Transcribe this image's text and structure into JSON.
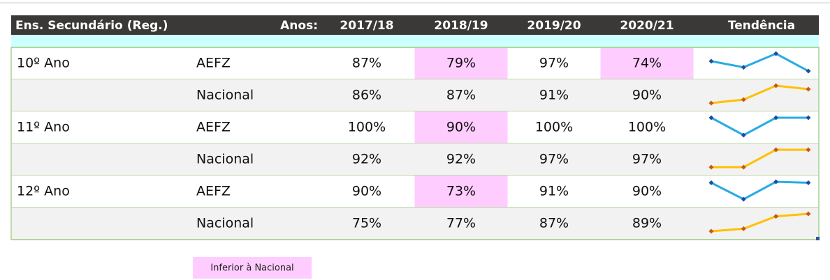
{
  "header": {
    "title": "Ens. Secundário (Reg.)",
    "years_label": "Anos:",
    "years": [
      "2017/18",
      "2018/19",
      "2019/20",
      "2020/21"
    ],
    "trend": "Tendência"
  },
  "table": {
    "rows": [
      {
        "grade": "10º Ano",
        "school": "AEFZ",
        "values": [
          87,
          79,
          97,
          74
        ],
        "value_labels": [
          "87%",
          "79%",
          "97%",
          "74%"
        ],
        "line_color": "#29abe2",
        "marker_color": "#1f4e9c"
      },
      {
        "school": "Nacional",
        "values": [
          86,
          87,
          91,
          90
        ],
        "value_labels": [
          "86%",
          "87%",
          "91%",
          "90%"
        ],
        "line_color": "#ffc000",
        "marker_color": "#c55a11"
      },
      {
        "grade": "11º Ano",
        "school": "AEFZ",
        "values": [
          100,
          90,
          100,
          100
        ],
        "value_labels": [
          "100%",
          "90%",
          "100%",
          "100%"
        ],
        "line_color": "#29abe2",
        "marker_color": "#1f4e9c"
      },
      {
        "school": "Nacional",
        "values": [
          92,
          92,
          97,
          97
        ],
        "value_labels": [
          "92%",
          "92%",
          "97%",
          "97%"
        ],
        "line_color": "#ffc000",
        "marker_color": "#c55a11"
      },
      {
        "grade": "12º Ano",
        "school": "AEFZ",
        "values": [
          90,
          73,
          91,
          90
        ],
        "value_labels": [
          "90%",
          "73%",
          "91%",
          "90%"
        ],
        "line_color": "#29abe2",
        "marker_color": "#1f4e9c"
      },
      {
        "school": "Nacional",
        "values": [
          75,
          77,
          87,
          89
        ],
        "value_labels": [
          "75%",
          "77%",
          "87%",
          "89%"
        ],
        "line_color": "#ffc000",
        "marker_color": "#c55a11"
      }
    ]
  },
  "legend": {
    "label": "Inferior à Nacional",
    "color": "#ffccff"
  }
}
